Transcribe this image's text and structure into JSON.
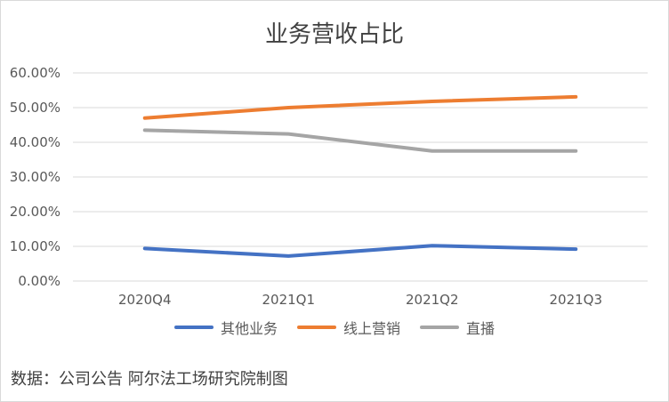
{
  "chart_data": {
    "type": "line",
    "title": "业务营收占比",
    "categories": [
      "2020Q4",
      "2021Q1",
      "2021Q2",
      "2021Q3"
    ],
    "ylim": [
      0,
      60
    ],
    "ytick_labels": [
      "0.00%",
      "10.00%",
      "20.00%",
      "30.00%",
      "40.00%",
      "50.00%",
      "60.00%"
    ],
    "yticks": [
      0,
      10,
      20,
      30,
      40,
      50,
      60
    ],
    "grid": true,
    "legend_position": "bottom",
    "series": [
      {
        "name": "其他业务",
        "color": "#4472c4",
        "values": [
          9.4,
          7.2,
          10.2,
          9.2
        ]
      },
      {
        "name": "线上营销",
        "color": "#ed7d31",
        "values": [
          47.0,
          50.0,
          51.8,
          53.1
        ]
      },
      {
        "name": "直播",
        "color": "#a5a5a5",
        "values": [
          43.5,
          42.4,
          37.5,
          37.5
        ]
      }
    ]
  },
  "source_note": "数据：公司公告  阿尔法工场研究院制图"
}
